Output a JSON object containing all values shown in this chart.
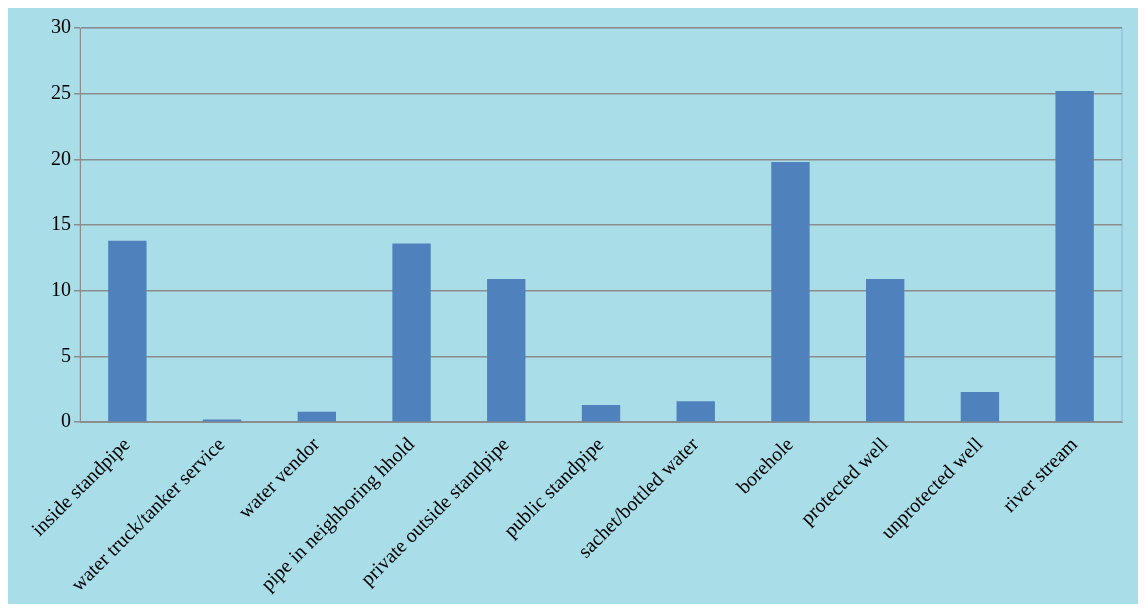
{
  "chart_data": {
    "type": "bar",
    "categories": [
      "inside standpipe",
      "water truck/tanker service",
      "water vendor",
      "pipe in neighboring hhold",
      "private outside standpipe",
      "public standpipe",
      "sachet/bottled water",
      "borehole",
      "protected well",
      "unprotected well",
      "river stream"
    ],
    "values": [
      13.8,
      0.2,
      0.8,
      13.6,
      10.9,
      1.3,
      1.6,
      19.8,
      10.9,
      2.3,
      25.2
    ],
    "color": "#4f81bd",
    "ylim": [
      0,
      30
    ],
    "yticks": [
      0,
      5,
      10,
      15,
      20,
      25,
      30
    ],
    "grid": "y"
  }
}
